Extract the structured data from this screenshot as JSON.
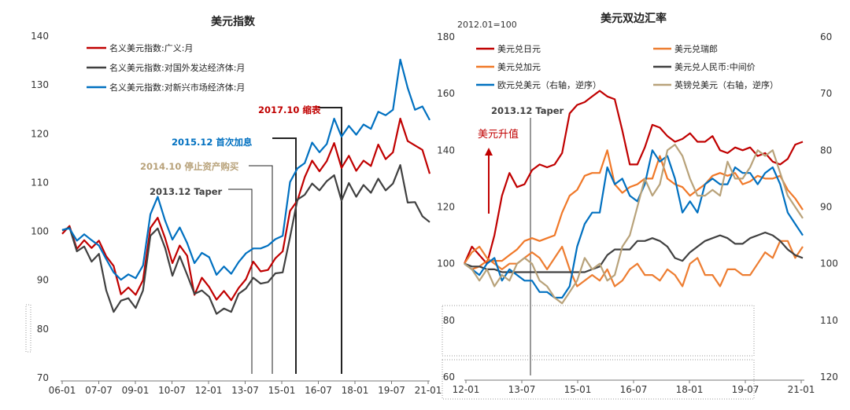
{
  "chart_data": [
    {
      "type": "line",
      "title": "美元指数",
      "xlabel": "",
      "ylabel": "",
      "ylim": [
        70,
        140
      ],
      "yticks": [
        "140",
        "130",
        "120",
        "110",
        "100",
        "90",
        "80",
        "70"
      ],
      "xticks": [
        "06-01",
        "07-07",
        "09-01",
        "10-07",
        "12-01",
        "13-07",
        "15-01",
        "16-07",
        "18-01",
        "19-07",
        "21-01"
      ],
      "legend": "top-left",
      "series": [
        {
          "name": "名义美元指数:广义:月",
          "color": "#C00000",
          "values": [
            99.5,
            101.1,
            96.4,
            98.2,
            96.6,
            98.1,
            94.9,
            92.9,
            87.1,
            88.5,
            87.0,
            90.0,
            100.7,
            102.8,
            98.6,
            93.5,
            97.1,
            95.0,
            87.0,
            90.5,
            88.6,
            86.0,
            87.8,
            85.9,
            88.4,
            90.2,
            93.8,
            91.8,
            92.1,
            94.5,
            95.9,
            104.2,
            106.3,
            111.1,
            114.5,
            112.3,
            114.4,
            118.1,
            113.0,
            115.5,
            112.4,
            114.5,
            113.4,
            117.8,
            114.8,
            116.2,
            123.1,
            118.5,
            117.6,
            116.7,
            111.8
          ]
        },
        {
          "name": "名义美元指数:对国外发达经济体:月",
          "color": "#404040",
          "values": [
            100.2,
            100.8,
            95.9,
            96.9,
            93.8,
            95.4,
            87.9,
            83.5,
            85.8,
            86.3,
            84.3,
            87.9,
            99.1,
            100.6,
            96.6,
            90.9,
            94.9,
            91.1,
            87.2,
            87.9,
            86.6,
            83.1,
            84.2,
            83.5,
            87.2,
            88.3,
            90.5,
            89.3,
            89.6,
            91.4,
            91.6,
            98.8,
            106.5,
            107.5,
            109.8,
            108.4,
            110.3,
            111.5,
            106.3,
            109.9,
            107.1,
            109.5,
            107.9,
            110.8,
            108.4,
            109.8,
            113.6,
            105.9,
            106.0,
            103.1,
            101.9
          ]
        },
        {
          "name": "名义美元指数:对新兴市场经济体:月",
          "color": "#0070C0",
          "values": [
            100.3,
            100.6,
            98.1,
            99.4,
            98.2,
            97.1,
            94.3,
            91.6,
            90.1,
            91.2,
            90.4,
            93.0,
            103.5,
            107.1,
            102.2,
            98.3,
            100.8,
            97.6,
            93.5,
            95.6,
            94.7,
            91.1,
            92.8,
            91.3,
            93.7,
            95.5,
            96.5,
            96.5,
            97.1,
            98.4,
            99.1,
            110.1,
            112.9,
            114.0,
            118.2,
            116.2,
            117.9,
            123.1,
            119.4,
            121.6,
            119.8,
            121.9,
            121.0,
            124.5,
            123.8,
            124.9,
            135.2,
            129.4,
            124.9,
            125.6,
            122.8
          ]
        }
      ],
      "annotations": [
        {
          "text": "2017.10 缩表",
          "color": "#C00000"
        },
        {
          "text": "2015.12 首次加息",
          "color": "#0070C0"
        },
        {
          "text": "2014.10 停止资产购买",
          "color": "#B8A27A"
        },
        {
          "text": "2013.12 Taper",
          "color": "#404040"
        }
      ]
    },
    {
      "type": "line",
      "title": "美元双边汇率",
      "unit_label": "2012.01=100",
      "xlabel": "",
      "ylabel": "",
      "ylim": [
        60,
        180
      ],
      "ylim_right": [
        60,
        120
      ],
      "yticks": [
        "180",
        "160",
        "140",
        "120",
        "100",
        "80",
        "60"
      ],
      "yticks_right": [
        "60",
        "70",
        "80",
        "90",
        "100",
        "110",
        "120"
      ],
      "xticks": [
        "12-01",
        "13-07",
        "15-01",
        "16-07",
        "18-01",
        "19-07",
        "21-01"
      ],
      "legend": "top",
      "series": [
        {
          "name": "美元兑日元",
          "color": "#C00000",
          "axis": "left",
          "values": [
            100,
            106,
            103,
            100,
            110,
            124,
            132,
            127,
            128,
            133,
            135,
            134,
            135,
            139,
            153,
            156,
            157,
            159,
            161,
            159,
            158,
            147,
            135,
            135,
            141,
            149,
            148,
            145,
            143,
            144,
            146,
            143,
            143,
            145,
            140,
            139,
            141,
            140,
            141,
            138,
            139,
            136,
            135,
            137,
            142,
            143
          ]
        },
        {
          "name": "美元兑瑞郎",
          "color": "#ED7D31",
          "axis": "right",
          "values": [
            100,
            98,
            97,
            99,
            100,
            101,
            100,
            100,
            99,
            98,
            99,
            101,
            99,
            97,
            101,
            104,
            103,
            102,
            103,
            101,
            104,
            103,
            101,
            100,
            102,
            102,
            103,
            101,
            102,
            104,
            100,
            99,
            102,
            102,
            104,
            101,
            101,
            102,
            102,
            100,
            98,
            99,
            96,
            96,
            99,
            97
          ]
        },
        {
          "name": "美元兑加元",
          "color": "#F07828",
          "axis": "left",
          "values": [
            100,
            98,
            99,
            101,
            101,
            101,
            103,
            105,
            108,
            109,
            108,
            109,
            110,
            118,
            124,
            126,
            131,
            132,
            132,
            140,
            128,
            125,
            127,
            128,
            130,
            130,
            138,
            130,
            128,
            127,
            124,
            126,
            128,
            131,
            132,
            131,
            132,
            128,
            129,
            131,
            130,
            130,
            131,
            126,
            123,
            119
          ]
        },
        {
          "name": "美元兑人民币:中间价",
          "color": "#404040",
          "axis": "left",
          "values": [
            100,
            99,
            99,
            98,
            98,
            97,
            97,
            97,
            97,
            97,
            97,
            97,
            97,
            97,
            97,
            97,
            97,
            98,
            99,
            103,
            105,
            105,
            105,
            108,
            108,
            109,
            108,
            106,
            102,
            101,
            104,
            106,
            108,
            109,
            110,
            109,
            107,
            107,
            109,
            110,
            111,
            110,
            108,
            105,
            103,
            102
          ]
        },
        {
          "name": "欧元兑美元（右轴，逆序）",
          "color": "#0070C0",
          "axis": "right",
          "values": [
            100,
            101,
            102,
            100,
            99,
            103,
            101,
            102,
            103,
            103,
            105,
            105,
            106,
            106,
            104,
            97,
            93,
            91,
            91,
            83,
            86,
            85,
            88,
            89,
            86,
            80,
            82,
            81,
            85,
            91,
            89,
            91,
            86,
            85,
            86,
            86,
            83,
            84,
            84,
            86,
            84,
            83,
            86,
            91,
            93,
            95
          ]
        },
        {
          "name": "英镑兑美元（右轴，逆序）",
          "color": "#B8A27A",
          "axis": "right",
          "values": [
            100,
            101,
            103,
            101,
            104,
            102,
            103,
            100,
            99,
            100,
            103,
            104,
            106,
            107,
            105,
            103,
            99,
            101,
            100,
            103,
            102,
            97,
            95,
            90,
            85,
            88,
            86,
            80,
            79,
            81,
            85,
            88,
            88,
            87,
            88,
            82,
            85,
            85,
            83,
            80,
            81,
            80,
            84,
            88,
            90,
            92
          ]
        }
      ],
      "annotations": [
        {
          "text": "2013.12 Taper",
          "color": "#404040"
        },
        {
          "text": "美元升值",
          "color": "#C00000"
        }
      ]
    }
  ]
}
